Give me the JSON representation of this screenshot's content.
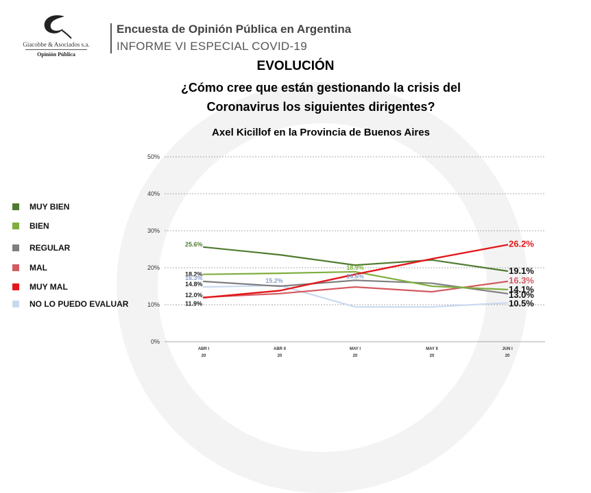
{
  "header": {
    "company": "Giacobbe & Asociados s.a.",
    "company_sub": "Opinión Pública",
    "title": "Encuesta de Opinión Pública en Argentina",
    "subtitle": "INFORME VI ESPECIAL COVID-19"
  },
  "colors": {
    "muy_bien": "#4e7b2f",
    "bien": "#7fae3f",
    "regular": "#7f7f7f",
    "mal": "#d35a60",
    "muy_mal": "#e3161b",
    "no_puedo": "#c9d8ef"
  },
  "chart_data": {
    "type": "line",
    "title": "EVOLUCIÓN",
    "question_line1": "¿Cómo cree que están gestionando la crisis del",
    "question_line2": "Coronavirus los siguientes dirigentes?",
    "subtitle": "Axel Kicillof en la Provincia de Buenos Aires",
    "x": [
      {
        "top": "ABR I",
        "bottom": "20"
      },
      {
        "top": "ABR II",
        "bottom": "20"
      },
      {
        "top": "MAY I",
        "bottom": "20"
      },
      {
        "top": "MAY II",
        "bottom": "20"
      },
      {
        "top": "JUN I",
        "bottom": "20"
      }
    ],
    "ylim": [
      0,
      50
    ],
    "yticks": [
      "0%",
      "10%",
      "20%",
      "30%",
      "40%",
      "50%"
    ],
    "grid": true,
    "legend_position": "left",
    "series": [
      {
        "name": "MUY BIEN",
        "color": "#4e7b2f",
        "values": [
          25.6,
          23.5,
          20.7,
          22.1,
          19.1
        ]
      },
      {
        "name": "BIEN",
        "color": "#7fae3f",
        "values": [
          18.2,
          18.5,
          18.9,
          15.0,
          14.1
        ]
      },
      {
        "name": "REGULAR",
        "color": "#7f7f7f",
        "values": [
          16.3,
          15.0,
          16.6,
          15.8,
          13.0
        ]
      },
      {
        "name": "MAL",
        "color": "#d35a60",
        "values": [
          12.0,
          13.0,
          14.8,
          13.5,
          16.3
        ]
      },
      {
        "name": "MUY MAL",
        "color": "#e3161b",
        "values": [
          11.9,
          13.8,
          18.2,
          22.4,
          26.2
        ]
      },
      {
        "name": "NO LO PUEDO EVALUAR",
        "color": "#c9d8ef",
        "values": [
          14.8,
          15.2,
          9.4,
          9.4,
          10.5
        ]
      }
    ],
    "labels": [
      {
        "text": "25.6%",
        "series": 0,
        "point": 0,
        "color": "#4e7b2f",
        "size": 9
      },
      {
        "text": "18.2%",
        "series": 1,
        "point": 0,
        "color": "#222222",
        "size": 9
      },
      {
        "text": "16.3%",
        "series": 2,
        "point": 0,
        "color": "#8aa0c8",
        "size": 9
      },
      {
        "text": "14.8%",
        "series": 5,
        "point": 0,
        "color": "#222222",
        "size": 9
      },
      {
        "text": "12.0%",
        "series": 3,
        "point": 0,
        "color": "#222222",
        "size": 9
      },
      {
        "text": "11.9%",
        "series": 4,
        "point": 0,
        "color": "#222222",
        "size": 9
      },
      {
        "text": "15.2%",
        "series": 5,
        "point": 1,
        "color": "#8aa0c8",
        "size": 9
      },
      {
        "text": "18.9%",
        "series": 1,
        "point": 2,
        "color": "#7fae3f",
        "size": 9
      },
      {
        "text": "16.6%",
        "series": 2,
        "point": 2,
        "color": "#8aa0c8",
        "size": 9
      },
      {
        "text": "26.2%",
        "series": 4,
        "point": 4,
        "color": "#e3161b",
        "size": 13
      },
      {
        "text": "19.1%",
        "series": 0,
        "point": 4,
        "color": "#111111",
        "size": 13
      },
      {
        "text": "16.3%",
        "series": 3,
        "point": 4,
        "color": "#d35a60",
        "size": 13
      },
      {
        "text": "14.1%",
        "series": 1,
        "point": 4,
        "color": "#111111",
        "size": 13
      },
      {
        "text": "13.0%",
        "series": 2,
        "point": 4,
        "color": "#111111",
        "size": 13
      },
      {
        "text": "10.5%",
        "series": 5,
        "point": 4,
        "color": "#111111",
        "size": 13
      }
    ]
  }
}
